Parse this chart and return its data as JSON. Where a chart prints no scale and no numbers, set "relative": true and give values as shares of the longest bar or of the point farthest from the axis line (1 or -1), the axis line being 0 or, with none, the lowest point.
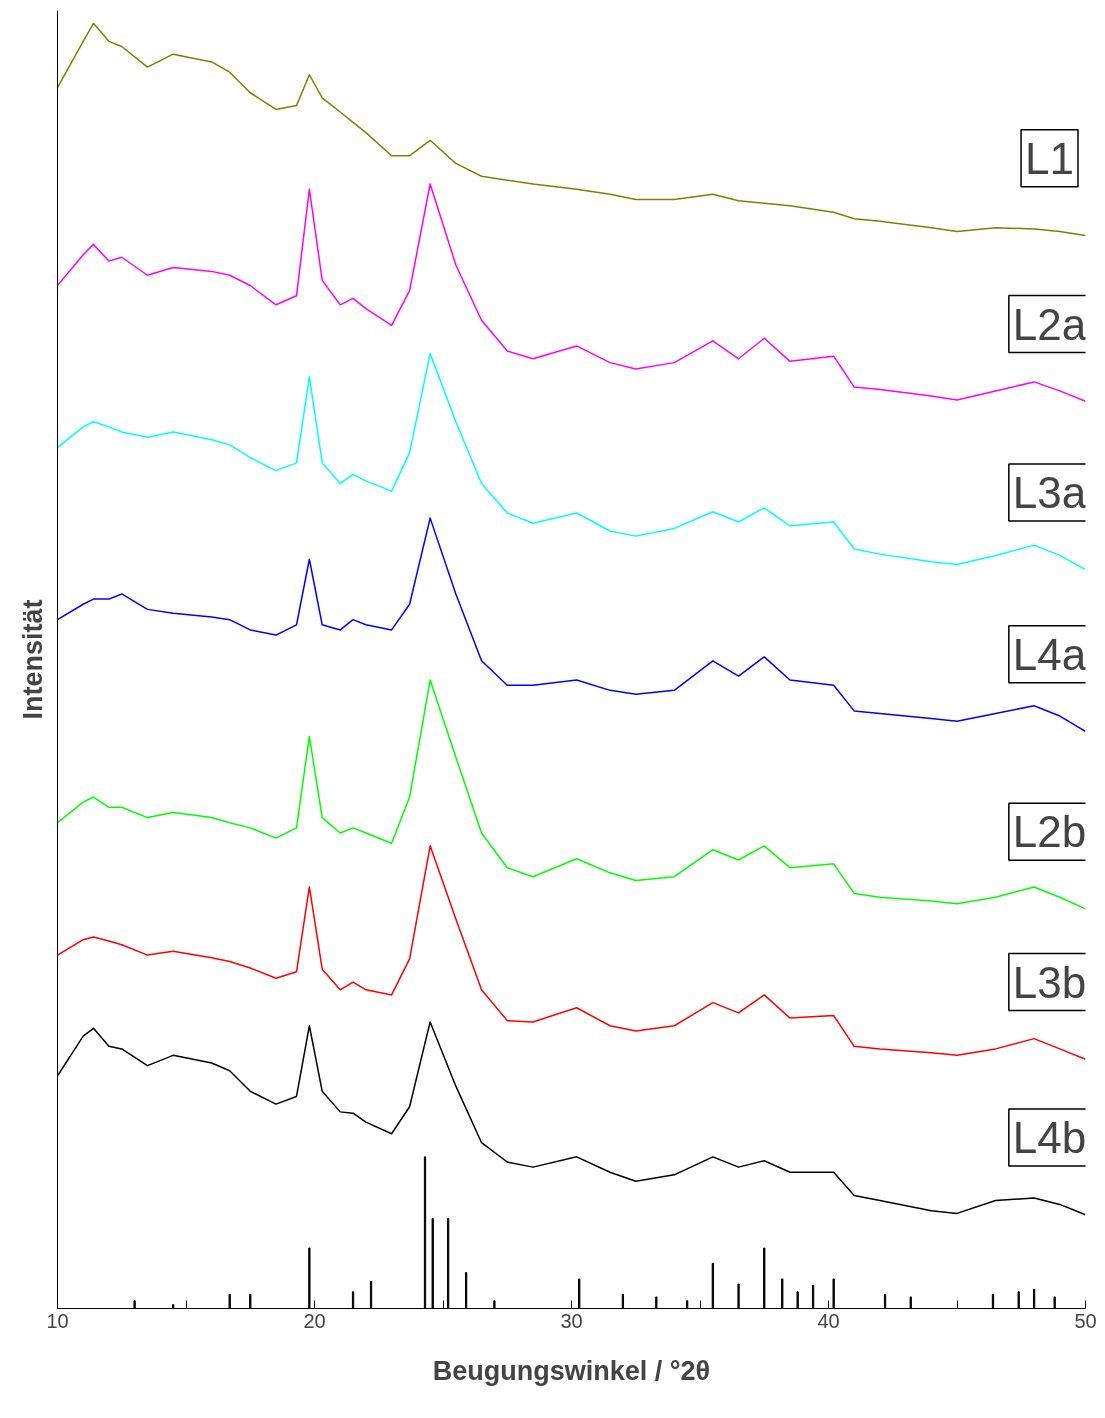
{
  "chart_data": {
    "type": "line",
    "relative": true,
    "xlabel": "Beugungswinkel / °2θ",
    "ylabel": "Intensität",
    "xlim": [
      10,
      50
    ],
    "xticks": [
      10,
      {
        "value": 15,
        "label": null
      },
      20,
      {
        "value": 25,
        "label": null
      },
      30,
      {
        "value": 35,
        "label": null
      },
      40,
      {
        "value": 45,
        "label": null
      },
      50
    ],
    "tick_labels": "x",
    "grid": false,
    "legend": false,
    "marker": "none",
    "line_style": "solid",
    "x": [
      10,
      11,
      11.4,
      12,
      12.5,
      13.5,
      14.5,
      16,
      16.7,
      17.5,
      18.5,
      19.3,
      19.8,
      20.3,
      21,
      21.5,
      22,
      23,
      23.7,
      24.5,
      25.5,
      26.5,
      27.5,
      28.5,
      30.2,
      31.5,
      32.5,
      34,
      35.5,
      36.5,
      37.5,
      38.5,
      40.2,
      41,
      42,
      44,
      45,
      46.5,
      48,
      49,
      50
    ],
    "series": [
      {
        "name": "L1",
        "color": "#808000",
        "values": [
          0.95,
          0.986,
          1.0,
          0.986,
          0.982,
          0.966,
          0.976,
          0.97,
          0.962,
          0.946,
          0.933,
          0.936,
          0.96,
          0.942,
          0.931,
          0.923,
          0.915,
          0.897,
          0.897,
          0.909,
          0.891,
          0.881,
          0.878,
          0.875,
          0.871,
          0.867,
          0.863,
          0.863,
          0.867,
          0.862,
          0.86,
          0.858,
          0.853,
          0.848,
          0.846,
          0.841,
          0.838,
          0.841,
          0.84,
          0.838,
          0.835
        ]
      },
      {
        "name": "L2a",
        "color": "#ff00ff",
        "values": [
          0.796,
          0.82,
          0.828,
          0.815,
          0.818,
          0.804,
          0.81,
          0.807,
          0.804,
          0.796,
          0.781,
          0.788,
          0.871,
          0.8,
          0.781,
          0.786,
          0.778,
          0.765,
          0.792,
          0.875,
          0.812,
          0.769,
          0.745,
          0.739,
          0.749,
          0.736,
          0.731,
          0.736,
          0.753,
          0.739,
          0.755,
          0.737,
          0.741,
          0.717,
          0.715,
          0.71,
          0.707,
          0.714,
          0.721,
          0.714,
          0.706
        ]
      },
      {
        "name": "L3a",
        "color": "#00ffff",
        "values": [
          0.67,
          0.686,
          0.69,
          0.686,
          0.682,
          0.678,
          0.682,
          0.676,
          0.672,
          0.662,
          0.652,
          0.658,
          0.725,
          0.658,
          0.642,
          0.649,
          0.644,
          0.636,
          0.666,
          0.743,
          0.69,
          0.642,
          0.619,
          0.611,
          0.619,
          0.605,
          0.601,
          0.607,
          0.62,
          0.612,
          0.623,
          0.609,
          0.612,
          0.591,
          0.587,
          0.581,
          0.579,
          0.586,
          0.594,
          0.586,
          0.575
        ]
      },
      {
        "name": "L4a",
        "color": "#0000ff",
        "values": [
          0.536,
          0.548,
          0.552,
          0.552,
          0.556,
          0.544,
          0.541,
          0.538,
          0.536,
          0.528,
          0.524,
          0.532,
          0.583,
          0.532,
          0.528,
          0.536,
          0.532,
          0.528,
          0.548,
          0.615,
          0.556,
          0.504,
          0.485,
          0.485,
          0.489,
          0.481,
          0.478,
          0.481,
          0.504,
          0.492,
          0.507,
          0.489,
          0.485,
          0.465,
          0.463,
          0.459,
          0.457,
          0.463,
          0.469,
          0.461,
          0.449
        ]
      },
      {
        "name": "L2b",
        "color": "#00ff00",
        "values": [
          0.378,
          0.394,
          0.398,
          0.39,
          0.39,
          0.382,
          0.386,
          0.382,
          0.378,
          0.374,
          0.366,
          0.374,
          0.445,
          0.382,
          0.37,
          0.374,
          0.37,
          0.362,
          0.398,
          0.489,
          0.429,
          0.37,
          0.343,
          0.336,
          0.35,
          0.339,
          0.333,
          0.336,
          0.357,
          0.349,
          0.36,
          0.343,
          0.346,
          0.323,
          0.32,
          0.317,
          0.315,
          0.32,
          0.328,
          0.32,
          0.311
        ]
      },
      {
        "name": "L3b",
        "color": "#ff0000",
        "values": [
          0.275,
          0.287,
          0.289,
          0.286,
          0.283,
          0.275,
          0.278,
          0.273,
          0.27,
          0.265,
          0.257,
          0.262,
          0.328,
          0.264,
          0.248,
          0.254,
          0.248,
          0.244,
          0.272,
          0.36,
          0.303,
          0.248,
          0.224,
          0.223,
          0.234,
          0.22,
          0.216,
          0.22,
          0.238,
          0.23,
          0.244,
          0.226,
          0.228,
          0.204,
          0.202,
          0.199,
          0.197,
          0.202,
          0.21,
          0.202,
          0.194
        ]
      },
      {
        "name": "L4b",
        "color": "#000000",
        "values": [
          0.181,
          0.212,
          0.218,
          0.204,
          0.202,
          0.189,
          0.197,
          0.191,
          0.185,
          0.169,
          0.159,
          0.165,
          0.22,
          0.169,
          0.153,
          0.152,
          0.145,
          0.136,
          0.157,
          0.223,
          0.173,
          0.129,
          0.114,
          0.11,
          0.118,
          0.106,
          0.099,
          0.104,
          0.118,
          0.11,
          0.115,
          0.106,
          0.106,
          0.088,
          0.084,
          0.076,
          0.074,
          0.084,
          0.086,
          0.081,
          0.073
        ]
      },
      {
        "type": "bar",
        "color": "#000000",
        "x": [
          13,
          14.5,
          16.7,
          17.5,
          19.8,
          21.5,
          22.2,
          24.3,
          24.6,
          25.2,
          25.9,
          27,
          30.3,
          32,
          33.3,
          34.5,
          35.5,
          36.5,
          37.5,
          38.2,
          38.8,
          39.4,
          40.2,
          42.2,
          43.2,
          46.4,
          47.4,
          48,
          48.8
        ],
        "values": [
          0.006,
          0.003,
          0.011,
          0.011,
          0.047,
          0.013,
          0.021,
          0.118,
          0.07,
          0.07,
          0.028,
          0.006,
          0.023,
          0.011,
          0.009,
          0.006,
          0.035,
          0.019,
          0.047,
          0.023,
          0.013,
          0.018,
          0.023,
          0.011,
          0.009,
          0.011,
          0.013,
          0.015,
          0.009
        ]
      }
    ]
  }
}
